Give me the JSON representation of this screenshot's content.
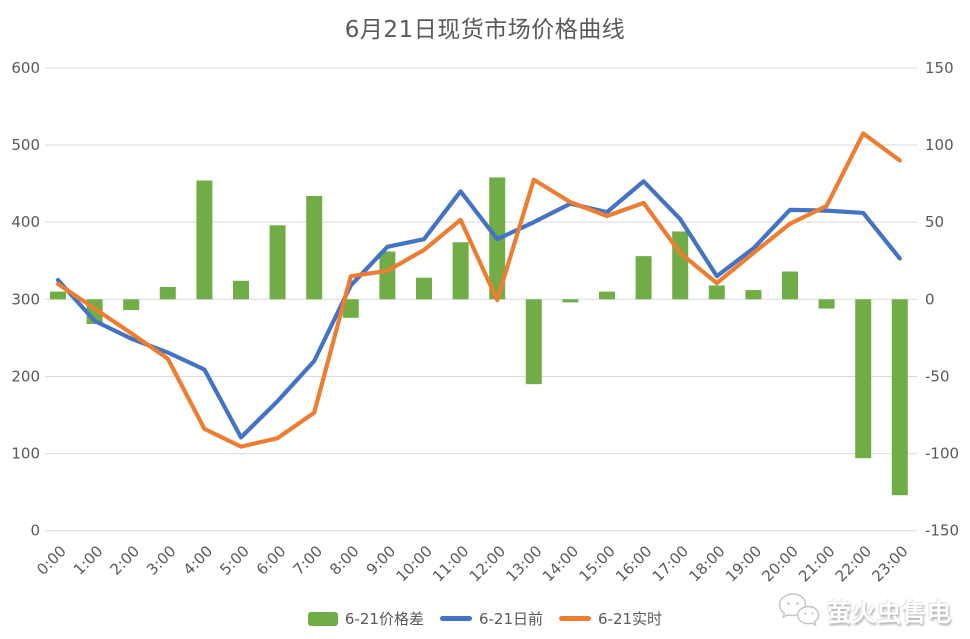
{
  "title": "6月21日现货市场价格曲线",
  "colors": {
    "bar": "#70ad47",
    "day_ahead": "#4472c4",
    "realtime": "#ed7d31",
    "grid": "#d9d9d9",
    "axis_text": "#595959",
    "title_text": "#595959"
  },
  "chart_data": {
    "type": "bar+line",
    "title": "6月21日现货市场价格曲线",
    "categories": [
      "0:00",
      "1:00",
      "2:00",
      "3:00",
      "4:00",
      "5:00",
      "6:00",
      "7:00",
      "8:00",
      "9:00",
      "10:00",
      "11:00",
      "12:00",
      "13:00",
      "14:00",
      "15:00",
      "16:00",
      "17:00",
      "18:00",
      "19:00",
      "20:00",
      "21:00",
      "22:00",
      "23:00"
    ],
    "series": [
      {
        "name": "6-21价格差",
        "type": "bar",
        "axis": "right",
        "color": "#70ad47",
        "values": [
          5,
          -16,
          -7,
          8,
          77,
          12,
          48,
          67,
          -12,
          31,
          14,
          37,
          79,
          -55,
          -2,
          5,
          28,
          44,
          9,
          6,
          18,
          -6,
          -103,
          -127
        ]
      },
      {
        "name": "6-21日前",
        "type": "line",
        "axis": "left",
        "color": "#4472c4",
        "values": [
          325,
          272,
          249,
          231,
          209,
          121,
          168,
          220,
          318,
          368,
          378,
          440,
          378,
          400,
          424,
          413,
          453,
          404,
          330,
          366,
          416,
          415,
          412,
          353
        ]
      },
      {
        "name": "6-21实时",
        "type": "line",
        "axis": "left",
        "color": "#ed7d31",
        "values": [
          320,
          288,
          256,
          223,
          132,
          109,
          120,
          153,
          330,
          337,
          364,
          403,
          299,
          455,
          426,
          408,
          425,
          360,
          321,
          360,
          398,
          421,
          515,
          480
        ]
      }
    ],
    "left_axis": {
      "min": 0,
      "max": 600,
      "step": 100,
      "ticks": [
        0,
        100,
        200,
        300,
        400,
        500,
        600
      ]
    },
    "right_axis": {
      "min": -150,
      "max": 150,
      "step": 50,
      "ticks": [
        -150,
        -100,
        -50,
        0,
        50,
        100,
        150
      ]
    },
    "grid": true,
    "legend_position": "bottom",
    "x_label_rotation": -45
  },
  "watermark": {
    "text": "萤火虫售电",
    "icon": "wechat-icon"
  }
}
